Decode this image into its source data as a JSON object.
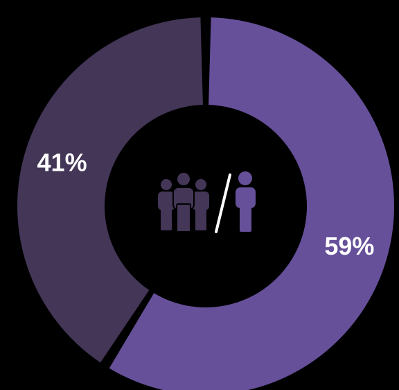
{
  "chart_data": {
    "type": "pie",
    "variant": "donut",
    "title": "",
    "series": [
      {
        "values": [
          59,
          41
        ],
        "labels": [
          "59%",
          "41%"
        ],
        "colors": [
          "#66509a",
          "#433657"
        ]
      }
    ],
    "legend": "none",
    "center_icon": {
      "left": "group-of-people-icon",
      "separator": "slash",
      "right": "single-person-icon"
    }
  },
  "colors": {
    "background": "#000000",
    "primary_slice": "#66509a",
    "secondary_slice": "#433657",
    "label_text": "#ffffff",
    "separator": "#ffffff"
  }
}
